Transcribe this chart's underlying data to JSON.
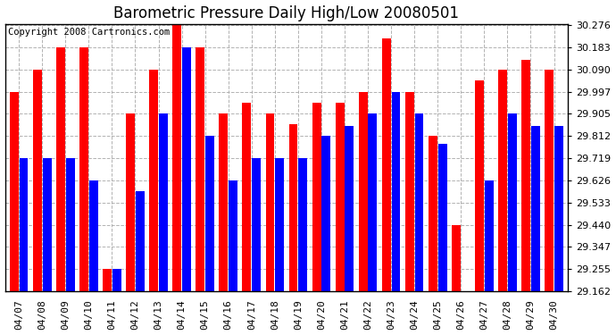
{
  "title": "Barometric Pressure Daily High/Low 20080501",
  "copyright": "Copyright 2008 Cartronics.com",
  "dates": [
    "04/07",
    "04/08",
    "04/09",
    "04/10",
    "04/11",
    "04/12",
    "04/13",
    "04/14",
    "04/15",
    "04/16",
    "04/17",
    "04/18",
    "04/19",
    "04/20",
    "04/21",
    "04/22",
    "04/23",
    "04/24",
    "04/25",
    "04/26",
    "04/27",
    "04/28",
    "04/29",
    "04/30"
  ],
  "highs": [
    29.997,
    30.09,
    30.183,
    30.183,
    29.255,
    29.905,
    30.09,
    30.276,
    30.183,
    29.905,
    29.95,
    29.905,
    29.862,
    29.95,
    29.95,
    29.997,
    30.22,
    29.997,
    29.812,
    29.44,
    30.044,
    30.09,
    30.13,
    30.09
  ],
  "lows": [
    29.719,
    29.719,
    29.719,
    29.626,
    29.255,
    29.58,
    29.905,
    30.183,
    29.812,
    29.626,
    29.719,
    29.719,
    29.719,
    29.812,
    29.855,
    29.905,
    29.997,
    29.905,
    29.78,
    29.162,
    29.626,
    29.905,
    29.855,
    29.855
  ],
  "bar_color_high": "#ff0000",
  "bar_color_low": "#0000ff",
  "bg_color": "#ffffff",
  "plot_bg_color": "#ffffff",
  "grid_color": "#aaaaaa",
  "yticks": [
    29.162,
    29.255,
    29.347,
    29.44,
    29.533,
    29.626,
    29.719,
    29.812,
    29.905,
    29.997,
    30.09,
    30.183,
    30.276
  ],
  "ymin": 29.162,
  "ymax": 30.276,
  "title_fontsize": 12,
  "tick_fontsize": 8,
  "copyright_fontsize": 7.5
}
